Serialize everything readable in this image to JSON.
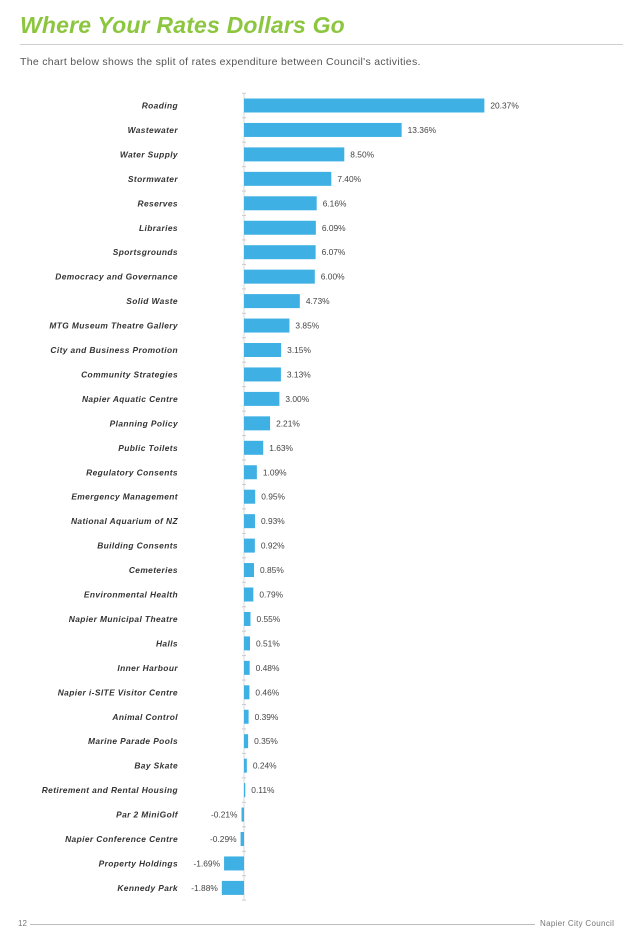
{
  "page": {
    "title": "Where Your Rates Dollars Go",
    "subtitle": "The chart below shows the split of rates expenditure between Council's activities.",
    "page_number": "12",
    "footer": "Napier City Council"
  },
  "colors": {
    "title": "#8cc63f",
    "bar": "#3fb0e3"
  },
  "chart_data": {
    "type": "bar",
    "orientation": "horizontal",
    "categories": [
      "Roading",
      "Wastewater",
      "Water Supply",
      "Stormwater",
      "Reserves",
      "Libraries",
      "Sportsgrounds",
      "Democracy and Governance",
      "Solid Waste",
      "MTG Museum Theatre Gallery",
      "City and Business Promotion",
      "Community Strategies",
      "Napier Aquatic Centre",
      "Planning Policy",
      "Public Toilets",
      "Regulatory Consents",
      "Emergency Management",
      "National Aquarium of NZ",
      "Building Consents",
      "Cemeteries",
      "Environmental Health",
      "Napier Municipal Theatre",
      "Halls",
      "Inner Harbour",
      "Napier i-SITE Visitor Centre",
      "Animal Control",
      "Marine Parade Pools",
      "Bay Skate",
      "Retirement and Rental Housing",
      "Par 2 MiniGolf",
      "Napier Conference Centre",
      "Property Holdings",
      "Kennedy Park"
    ],
    "values": [
      20.37,
      13.36,
      8.5,
      7.4,
      6.16,
      6.09,
      6.07,
      6.0,
      4.73,
      3.85,
      3.15,
      3.13,
      3.0,
      2.21,
      1.63,
      1.09,
      0.95,
      0.93,
      0.92,
      0.85,
      0.79,
      0.55,
      0.51,
      0.48,
      0.46,
      0.39,
      0.35,
      0.24,
      0.11,
      -0.21,
      -0.29,
      -1.69,
      -1.88
    ],
    "value_labels": [
      "20.37%",
      "13.36%",
      "8.50%",
      "7.40%",
      "6.16%",
      "6.09%",
      "6.07%",
      "6.00%",
      "4.73%",
      "3.85%",
      "3.15%",
      "3.13%",
      "3.00%",
      "2.21%",
      "1.63%",
      "1.09%",
      "0.95%",
      "0.93%",
      "0.92%",
      "0.85%",
      "0.79%",
      "0.55%",
      "0.51%",
      "0.48%",
      "0.46%",
      "0.39%",
      "0.35%",
      "0.24%",
      "0.11%",
      "-0.21%",
      "-0.29%",
      "-1.69%",
      "-1.88%"
    ]
  }
}
